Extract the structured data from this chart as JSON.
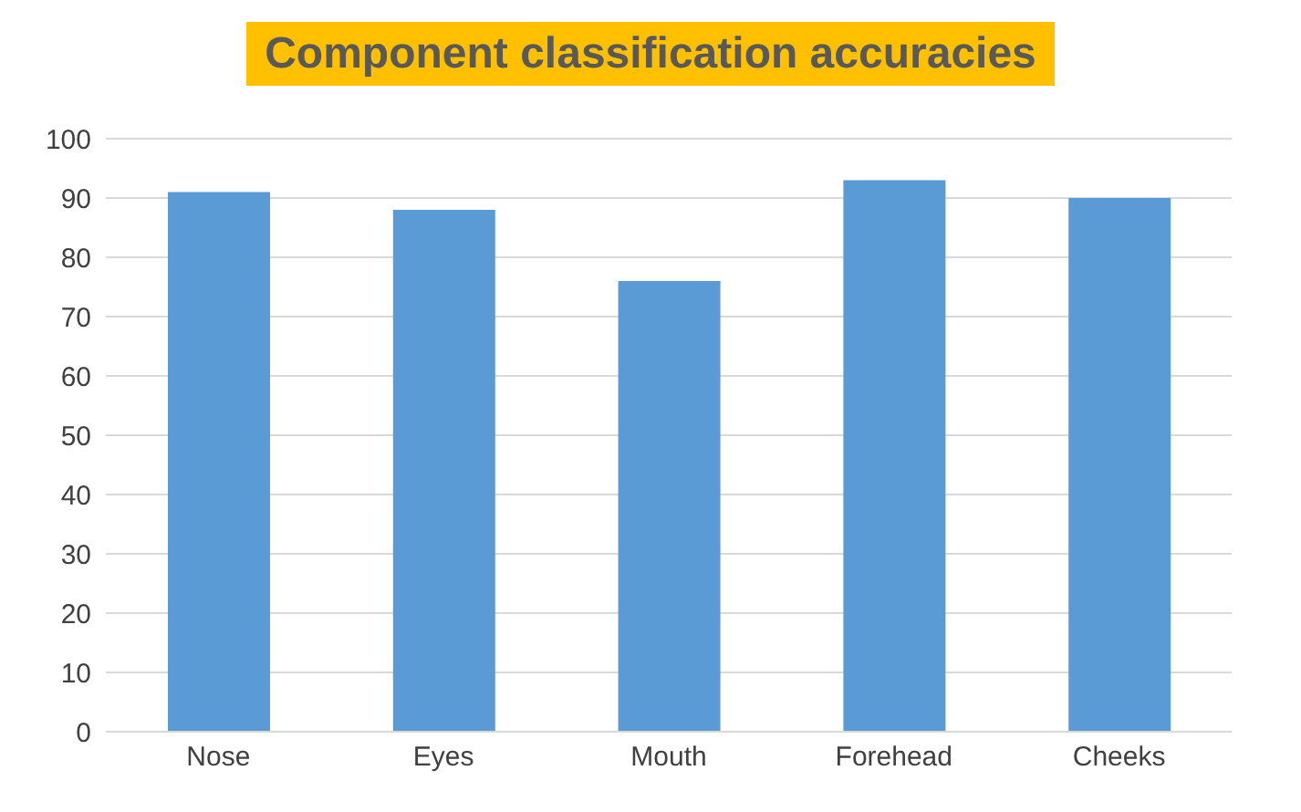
{
  "chart_data": {
    "type": "bar",
    "title": "Component classification accuracies",
    "categories": [
      "Nose",
      "Eyes",
      "Mouth",
      "Forehead",
      "Cheeks"
    ],
    "values": [
      91,
      88,
      76,
      93,
      90
    ],
    "color": "#5b9bd5",
    "ylim": [
      0,
      100
    ],
    "yticks": [
      0,
      10,
      20,
      30,
      40,
      50,
      60,
      70,
      80,
      90,
      100
    ],
    "grid": "y"
  }
}
